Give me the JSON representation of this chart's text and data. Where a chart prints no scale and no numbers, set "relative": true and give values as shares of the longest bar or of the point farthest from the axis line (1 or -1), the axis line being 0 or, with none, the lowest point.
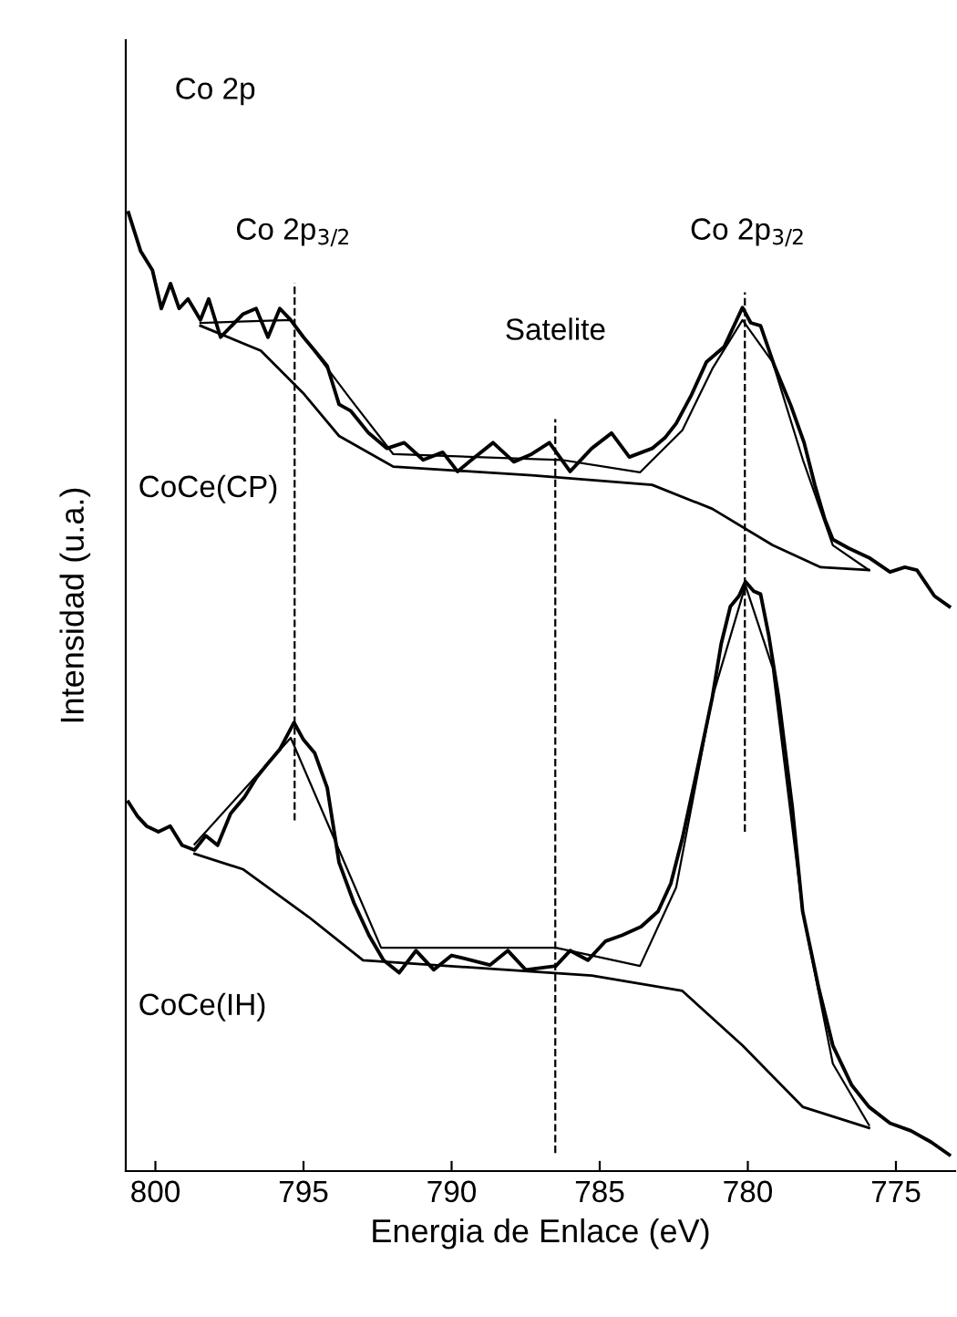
{
  "chart_data": {
    "type": "line",
    "relative": true,
    "title": "Co 2p",
    "xlabel": "Energia de Enlace (eV)",
    "ylabel": "Intensidad (u.a.)",
    "xlim": [
      801,
      773
    ],
    "xticks": [
      800,
      795,
      790,
      785,
      780,
      775
    ],
    "grid": false,
    "marker": "none",
    "line_style": "solid",
    "annotations": [
      "Co 2p$_{3/2}$",
      "Co 2p$_{3/2}$",
      "Satelite",
      "CoCe(CP)",
      "CoCe(IH)"
    ],
    "ref_lines": [
      {
        "axis": "x",
        "value": 795.3,
        "line_style": "dashed",
        "color": "#000000"
      },
      {
        "axis": "x",
        "value": 786.5,
        "line_style": "dashed",
        "color": "#000000"
      },
      {
        "axis": "x",
        "value": 780.1,
        "line_style": "dashed",
        "color": "#000000"
      }
    ],
    "series": [
      {
        "color": "#000000",
        "x": [
          800.91,
          800.5,
          800.1,
          799.8,
          799.49,
          799.2,
          798.9,
          798.48,
          798.2,
          797.8,
          797.05,
          796.6,
          796.2,
          795.8,
          795.43,
          795.0,
          794.62,
          794.2,
          793.8,
          793.4,
          792.8,
          792.18,
          791.6,
          790.96,
          790.3,
          789.8,
          789.33,
          788.6,
          787.9,
          787.3,
          786.7,
          786.0,
          785.27,
          784.6,
          784.0,
          783.23,
          782.8,
          782.42,
          781.9,
          781.4,
          780.8,
          780.18,
          779.9,
          779.57,
          779.1,
          778.55,
          778.1,
          777.74,
          777.4,
          777.13,
          776.6,
          775.91,
          775.2,
          774.7,
          774.29,
          773.7,
          773.2
        ],
        "values": [
          1.0,
          0.96,
          0.94,
          0.9,
          0.926,
          0.9,
          0.91,
          0.888,
          0.91,
          0.87,
          0.894,
          0.9,
          0.87,
          0.9,
          0.888,
          0.87,
          0.856,
          0.84,
          0.8,
          0.793,
          0.77,
          0.754,
          0.76,
          0.742,
          0.75,
          0.73,
          0.742,
          0.76,
          0.74,
          0.748,
          0.76,
          0.73,
          0.754,
          0.77,
          0.745,
          0.754,
          0.765,
          0.78,
          0.81,
          0.844,
          0.86,
          0.901,
          0.885,
          0.882,
          0.84,
          0.799,
          0.76,
          0.716,
          0.68,
          0.659,
          0.65,
          0.64,
          0.625,
          0.63,
          0.627,
          0.6,
          0.589
        ]
      },
      {
        "color": "#000000",
        "x": [
          798.48,
          795.43,
          793.4,
          791.97,
          786.28,
          783.64,
          782.21,
          781.2,
          780.18,
          779.16,
          778.14,
          777.13,
          775.91
        ],
        "values": [
          0.885,
          0.888,
          0.805,
          0.748,
          0.742,
          0.729,
          0.773,
          0.837,
          0.888,
          0.844,
          0.742,
          0.653,
          0.627
        ]
      },
      {
        "color": "#000000",
        "x": [
          798.48,
          796.44,
          795.02,
          793.8,
          791.97,
          787.3,
          783.23,
          781.2,
          779.16,
          777.54,
          775.91
        ],
        "values": [
          0.882,
          0.856,
          0.812,
          0.767,
          0.735,
          0.726,
          0.716,
          0.691,
          0.653,
          0.63,
          0.627
        ]
      },
      {
        "color": "#000000",
        "x": [
          800.91,
          800.6,
          800.3,
          799.9,
          799.5,
          799.1,
          798.68,
          798.3,
          797.9,
          797.46,
          797.0,
          796.6,
          796.24,
          795.8,
          795.32,
          795.0,
          794.62,
          794.2,
          793.8,
          793.3,
          792.79,
          792.3,
          791.77,
          791.2,
          790.6,
          790.0,
          789.33,
          788.7,
          788.1,
          787.5,
          786.48,
          786.0,
          785.4,
          784.8,
          784.25,
          783.6,
          783.03,
          782.6,
          782.21,
          781.7,
          781.2,
          780.9,
          780.59,
          780.3,
          780.08,
          779.8,
          779.57,
          779.3,
          778.96,
          778.5,
          778.15,
          777.6,
          777.13,
          776.5,
          775.91,
          775.2,
          774.49,
          773.8,
          773.2
        ],
        "values": [
          0.385,
          0.37,
          0.36,
          0.354,
          0.36,
          0.34,
          0.335,
          0.35,
          0.34,
          0.373,
          0.39,
          0.41,
          0.424,
          0.44,
          0.468,
          0.45,
          0.436,
          0.4,
          0.322,
          0.28,
          0.246,
          0.22,
          0.207,
          0.23,
          0.21,
          0.225,
          0.22,
          0.215,
          0.23,
          0.21,
          0.214,
          0.23,
          0.22,
          0.24,
          0.246,
          0.255,
          0.271,
          0.3,
          0.347,
          0.42,
          0.494,
          0.55,
          0.589,
          0.6,
          0.615,
          0.605,
          0.602,
          0.56,
          0.494,
          0.38,
          0.271,
          0.19,
          0.131,
          0.09,
          0.067,
          0.05,
          0.042,
          0.03,
          0.017
        ]
      },
      {
        "color": "#000000",
        "x": [
          798.68,
          795.43,
          793.8,
          792.38,
          786.48,
          783.64,
          782.42,
          781.2,
          780.08,
          779.16,
          778.15,
          777.13,
          775.91
        ],
        "values": [
          0.341,
          0.452,
          0.335,
          0.233,
          0.233,
          0.214,
          0.296,
          0.494,
          0.611,
          0.525,
          0.271,
          0.112,
          0.048
        ]
      },
      {
        "color": "#000000",
        "x": [
          798.68,
          797.05,
          794.82,
          792.99,
          785.27,
          782.21,
          780.18,
          778.15,
          775.91
        ],
        "values": [
          0.331,
          0.315,
          0.265,
          0.22,
          0.204,
          0.188,
          0.131,
          0.067,
          0.045
        ]
      }
    ]
  }
}
